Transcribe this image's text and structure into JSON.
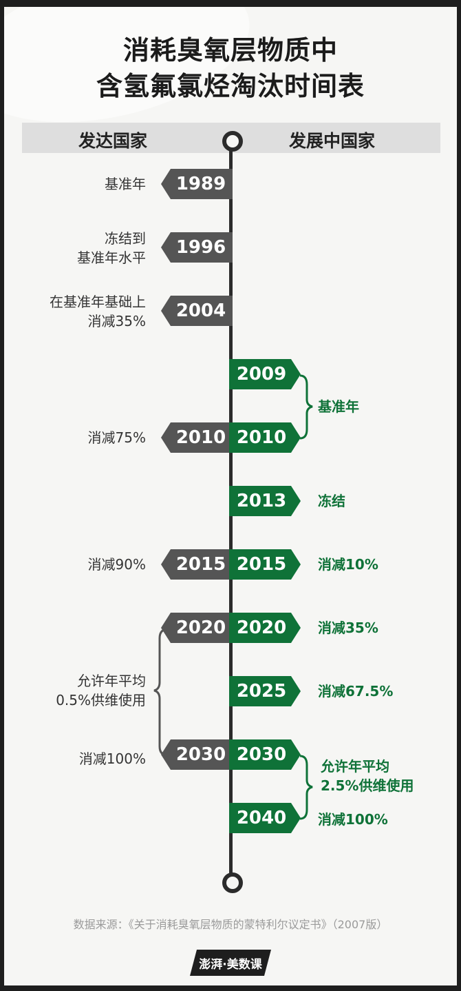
{
  "title": {
    "line1": "消耗臭氧层物质中",
    "line2": "含氢氟氯烃淘汰时间表"
  },
  "header": {
    "developed": "发达国家",
    "developing": "发展中国家"
  },
  "developed": [
    {
      "year": "1989",
      "text": "基准年"
    },
    {
      "year": "1996",
      "text": "冻结到\n基准年水平"
    },
    {
      "year": "2004",
      "text": "在基准年基础上\n消减35%"
    },
    {
      "year": "2010",
      "text": "消减75%"
    },
    {
      "year": "2015",
      "text": "消减90%"
    },
    {
      "year": "2020",
      "text": ""
    },
    {
      "year": "2030",
      "text": "消减100%"
    }
  ],
  "developed_range_text": "允许年平均\n0.5%供维使用",
  "developing": [
    {
      "year": "2009",
      "text": ""
    },
    {
      "year": "2010",
      "text": ""
    },
    {
      "year": "2013",
      "text": "冻结"
    },
    {
      "year": "2015",
      "text": "消减10%"
    },
    {
      "year": "2020",
      "text": "消减35%"
    },
    {
      "year": "2025",
      "text": "消减67.5%"
    },
    {
      "year": "2030",
      "text": ""
    },
    {
      "year": "2040",
      "text": "消减100%"
    }
  ],
  "developing_range_texts": {
    "baseline": "基准年",
    "allowance": "允许年平均\n2.5%供维使用"
  },
  "source": "数据来源：《关于消耗臭氧层物质的蒙特利尔议定书》（2007版）",
  "logo": "澎湃·美数课",
  "colors": {
    "developed": "#555555",
    "developing": "#0f7238",
    "axis": "#2b2b2b"
  }
}
